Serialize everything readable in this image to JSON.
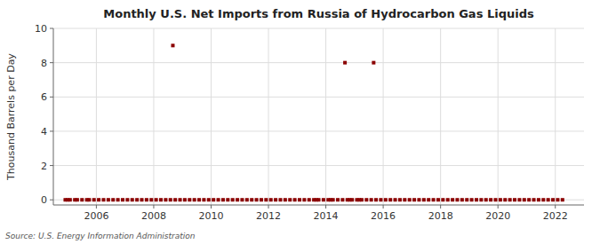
{
  "chart_data": {
    "type": "scatter",
    "title": "Monthly U.S. Net Imports from Russia of Hydrocarbon Gas Liquids",
    "ylabel": "Thousand Barrels per Day",
    "annotations": [
      "Source: U.S. Energy Information Administration"
    ],
    "color": "#8b0000",
    "marker": "square",
    "grid": true,
    "xlim": [
      2004.5,
      2023.0
    ],
    "ylim": [
      -0.3,
      10
    ],
    "xticks": [
      2006,
      2008,
      2010,
      2012,
      2014,
      2016,
      2018,
      2020,
      2022
    ],
    "yticks": [
      0,
      2,
      4,
      6,
      8,
      10
    ],
    "x": [
      2004.917,
      2005.0,
      2005.083,
      2005.25,
      2005.333,
      2005.5,
      2005.667,
      2005.75,
      2005.917,
      2006.083,
      2006.25,
      2006.417,
      2006.583,
      2006.75,
      2006.917,
      2007.083,
      2007.25,
      2007.417,
      2007.583,
      2007.75,
      2007.917,
      2008.083,
      2008.25,
      2008.417,
      2008.583,
      2008.667,
      2008.75,
      2008.917,
      2009.083,
      2009.25,
      2009.417,
      2009.583,
      2009.75,
      2009.917,
      2010.083,
      2010.25,
      2010.417,
      2010.583,
      2010.75,
      2010.917,
      2011.083,
      2011.25,
      2011.417,
      2011.583,
      2011.75,
      2011.917,
      2012.083,
      2012.25,
      2012.417,
      2012.583,
      2012.75,
      2012.917,
      2013.083,
      2013.25,
      2013.417,
      2013.583,
      2013.667,
      2013.75,
      2013.917,
      2014.083,
      2014.167,
      2014.25,
      2014.417,
      2014.583,
      2014.667,
      2014.75,
      2014.833,
      2014.917,
      2015.083,
      2015.167,
      2015.25,
      2015.417,
      2015.583,
      2015.667,
      2015.75,
      2015.917,
      2016.083,
      2016.25,
      2016.417,
      2016.583,
      2016.75,
      2016.917,
      2017.083,
      2017.25,
      2017.417,
      2017.583,
      2017.75,
      2017.917,
      2018.083,
      2018.25,
      2018.417,
      2018.583,
      2018.75,
      2018.917,
      2019.083,
      2019.25,
      2019.417,
      2019.583,
      2019.75,
      2019.917,
      2020.083,
      2020.25,
      2020.417,
      2020.583,
      2020.75,
      2020.917,
      2021.083,
      2021.25,
      2021.417,
      2021.583,
      2021.75,
      2021.917,
      2022.083,
      2022.25
    ],
    "values": [
      0.0,
      0.0,
      0.0,
      0.0,
      0.0,
      0.0,
      0.0,
      0.0,
      0.0,
      0.0,
      0.0,
      0.0,
      0.0,
      0.0,
      0.0,
      0.0,
      0.0,
      0.0,
      0.0,
      0.0,
      0.0,
      0.0,
      0.0,
      0.0,
      0.0,
      9.0,
      0.0,
      0.0,
      0.0,
      0.0,
      0.0,
      0.0,
      0.0,
      0.0,
      0.0,
      0.0,
      0.0,
      0.0,
      0.0,
      0.0,
      0.0,
      0.0,
      0.0,
      0.0,
      0.0,
      0.0,
      0.0,
      0.0,
      0.0,
      0.0,
      0.0,
      0.0,
      0.0,
      0.0,
      0.0,
      0.0,
      0.0,
      0.0,
      0.0,
      0.0,
      0.0,
      0.0,
      0.0,
      0.0,
      8.0,
      0.0,
      0.0,
      0.0,
      0.0,
      0.0,
      0.0,
      0.0,
      0.0,
      8.0,
      0.0,
      0.0,
      0.0,
      0.0,
      0.0,
      0.0,
      0.0,
      0.0,
      0.0,
      0.0,
      0.0,
      0.0,
      0.0,
      0.0,
      0.0,
      0.0,
      0.0,
      0.0,
      0.0,
      0.0,
      0.0,
      0.0,
      0.0,
      0.0,
      0.0,
      0.0,
      0.0,
      0.0,
      0.0,
      0.0,
      0.0,
      0.0,
      0.0,
      0.0,
      0.0,
      0.0,
      0.0,
      0.0,
      0.0,
      0.0
    ]
  }
}
